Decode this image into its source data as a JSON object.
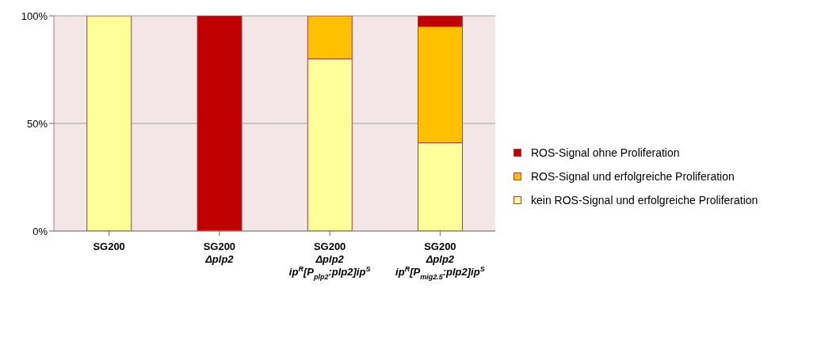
{
  "chart_data": {
    "type": "bar",
    "stacked": true,
    "categories": [
      "SG200",
      "SG200\nΔplp2",
      "SG200\nΔplp2\nip$^{R}$[P$_{plp2}$:plp2]ip$^{S}$",
      "SG200\nΔplp2\nip$^{R}$[P$_{mig2.5}$:plp2]ip$^{S}$"
    ],
    "series": [
      {
        "name": "kein ROS-Signal und erfolgreiche Proliferation",
        "color": "#ffff99",
        "values": [
          100,
          0,
          80,
          41
        ]
      },
      {
        "name": "ROS-Signal und erfolgreiche Proliferation",
        "color": "#ffc000",
        "values": [
          0,
          0,
          20,
          54
        ]
      },
      {
        "name": "ROS-Signal ohne Proliferation",
        "color": "#c00000",
        "values": [
          0,
          100,
          0,
          5
        ]
      }
    ],
    "ylim": [
      0,
      100
    ],
    "yticks": [
      {
        "value": 0,
        "label": "0%"
      },
      {
        "value": 50,
        "label": "50%"
      },
      {
        "value": 100,
        "label": "100%"
      }
    ],
    "grid": "y",
    "legend": "right"
  }
}
